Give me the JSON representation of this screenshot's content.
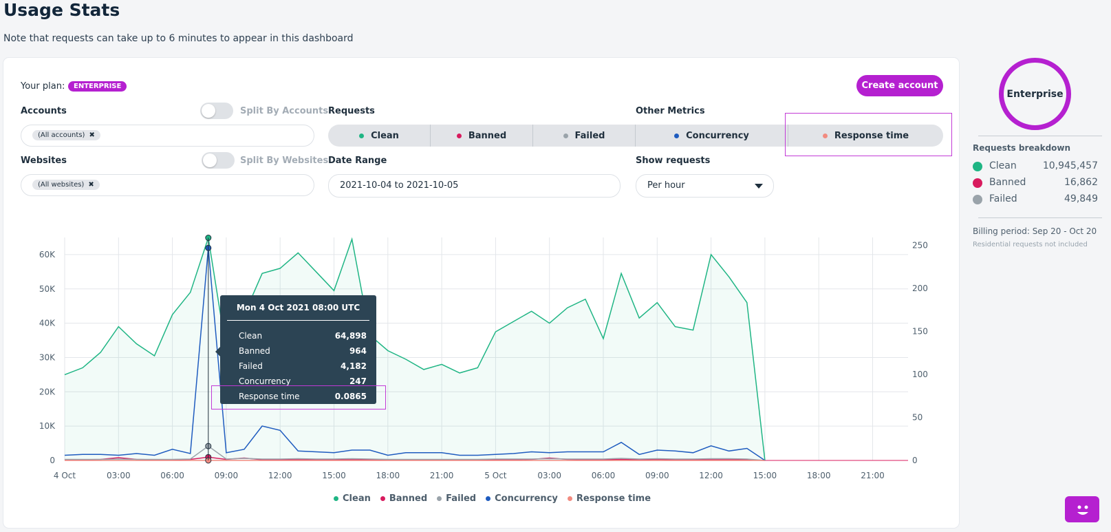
{
  "header": {
    "title": "Usage Stats",
    "note": "Note that requests can take up to 6 minutes to appear in this dashboard"
  },
  "plan": {
    "label": "Your plan:",
    "badge": "ENTERPRISE",
    "create_button": "Create account"
  },
  "filters": {
    "accounts_label": "Accounts",
    "split_accounts_label": "Split By Accounts",
    "accounts_chip": "(All accounts)",
    "websites_label": "Websites",
    "split_websites_label": "Split By Websites",
    "websites_chip": "(All websites)",
    "requests_label": "Requests",
    "other_metrics_label": "Other Metrics",
    "date_range_label": "Date Range",
    "date_range_value": "2021-10-04 to 2021-10-05",
    "show_requests_label": "Show requests",
    "show_requests_value": "Per hour"
  },
  "segments": [
    {
      "label": "Clean",
      "color": "#1fb584"
    },
    {
      "label": "Banned",
      "color": "#d81b5e"
    },
    {
      "label": "Failed",
      "color": "#9aa3aa"
    },
    {
      "label": "Concurrency",
      "color": "#1e5bbf"
    },
    {
      "label": "Response time",
      "color": "#f28b80"
    }
  ],
  "sidebar": {
    "plan_ring": "Enterprise",
    "breakdown_title": "Requests breakdown",
    "items": [
      {
        "name": "Clean",
        "value": "10,945,457",
        "color": "#1fb584"
      },
      {
        "name": "Banned",
        "value": "16,862",
        "color": "#d81b5e"
      },
      {
        "name": "Failed",
        "value": "49,849",
        "color": "#9aa3aa"
      }
    ],
    "billing": "Billing period: Sep 20 - Oct 20",
    "residential_note": "Residential requests not included"
  },
  "tooltip": {
    "title": "Mon 4 Oct 2021 08:00 UTC",
    "rows": [
      {
        "label": "Clean",
        "value": "64,898"
      },
      {
        "label": "Banned",
        "value": "964"
      },
      {
        "label": "Failed",
        "value": "4,182"
      },
      {
        "label": "Concurrency",
        "value": "247"
      },
      {
        "label": "Response time",
        "value": "0.0865"
      }
    ]
  },
  "chart_data": {
    "type": "area",
    "x": [
      "4 Oct 00:00",
      "01:00",
      "02:00",
      "03:00",
      "04:00",
      "05:00",
      "06:00",
      "07:00",
      "08:00",
      "09:00",
      "10:00",
      "11:00",
      "12:00",
      "13:00",
      "14:00",
      "15:00",
      "16:00",
      "17:00",
      "18:00",
      "19:00",
      "20:00",
      "21:00",
      "22:00",
      "23:00",
      "5 Oct 00:00",
      "01:00",
      "02:00",
      "03:00",
      "04:00",
      "05:00",
      "06:00",
      "07:00",
      "08:00",
      "09:00",
      "10:00",
      "11:00",
      "12:00",
      "13:00",
      "14:00",
      "15:00"
    ],
    "x_tick_labels": [
      "4 Oct",
      "03:00",
      "06:00",
      "09:00",
      "12:00",
      "15:00",
      "18:00",
      "21:00",
      "5 Oct",
      "03:00",
      "06:00",
      "09:00",
      "12:00",
      "15:00",
      "18:00",
      "21:00"
    ],
    "y_left_ticks": [
      "0",
      "10K",
      "20K",
      "30K",
      "40K",
      "50K",
      "60K"
    ],
    "y_right_ticks": [
      "0",
      "50",
      "100",
      "150",
      "200",
      "250"
    ],
    "ylim_left": [
      0,
      65000
    ],
    "ylim_right": [
      0,
      250
    ],
    "series": [
      {
        "name": "Clean",
        "axis": "left",
        "color": "#1fb584",
        "values": [
          25000,
          27000,
          31500,
          39000,
          34000,
          30500,
          42500,
          49000,
          64898,
          32000,
          42500,
          54500,
          56000,
          60500,
          55000,
          49500,
          64500,
          36500,
          32000,
          29500,
          26500,
          28000,
          25500,
          27000,
          37500,
          40500,
          43500,
          40000,
          44500,
          47000,
          35500,
          54500,
          41500,
          46000,
          39000,
          38000,
          60000,
          53500,
          46000,
          0
        ]
      },
      {
        "name": "Banned",
        "axis": "left",
        "color": "#d81b5e",
        "values": [
          200,
          200,
          300,
          800,
          300,
          200,
          200,
          300,
          964,
          300,
          700,
          200,
          200,
          200,
          200,
          200,
          200,
          200,
          200,
          200,
          200,
          200,
          200,
          200,
          200,
          200,
          300,
          700,
          300,
          200,
          200,
          300,
          200,
          300,
          200,
          200,
          200,
          200,
          200,
          0
        ]
      },
      {
        "name": "Failed",
        "axis": "left",
        "color": "#9aa3aa",
        "values": [
          300,
          300,
          300,
          400,
          300,
          300,
          300,
          400,
          4182,
          400,
          600,
          400,
          400,
          500,
          400,
          400,
          500,
          400,
          300,
          300,
          300,
          300,
          300,
          300,
          400,
          400,
          400,
          500,
          400,
          400,
          400,
          600,
          400,
          500,
          400,
          400,
          500,
          500,
          400,
          0
        ]
      },
      {
        "name": "Concurrency",
        "axis": "right",
        "color": "#1e5bbf",
        "values": [
          6,
          7,
          7,
          6,
          8,
          6,
          13,
          8,
          247,
          9,
          13,
          40,
          35,
          11,
          10,
          9,
          12,
          12,
          6,
          9,
          9,
          9,
          6,
          6,
          7,
          8,
          10,
          9,
          10,
          10,
          10,
          21,
          7,
          12,
          11,
          9,
          17,
          11,
          14,
          0
        ]
      },
      {
        "name": "Response time",
        "axis": "left",
        "color": "#f28b80",
        "values": [
          0,
          0,
          0,
          0,
          0,
          0,
          0,
          0,
          0.0865,
          0,
          0,
          0,
          0,
          0,
          0,
          0,
          0,
          0,
          0,
          0,
          0,
          0,
          0,
          0,
          0,
          0,
          0,
          0,
          0,
          0,
          0,
          0,
          0,
          0,
          0,
          0,
          0,
          0,
          0,
          0
        ]
      }
    ],
    "grid": true,
    "legend": "bottom"
  }
}
